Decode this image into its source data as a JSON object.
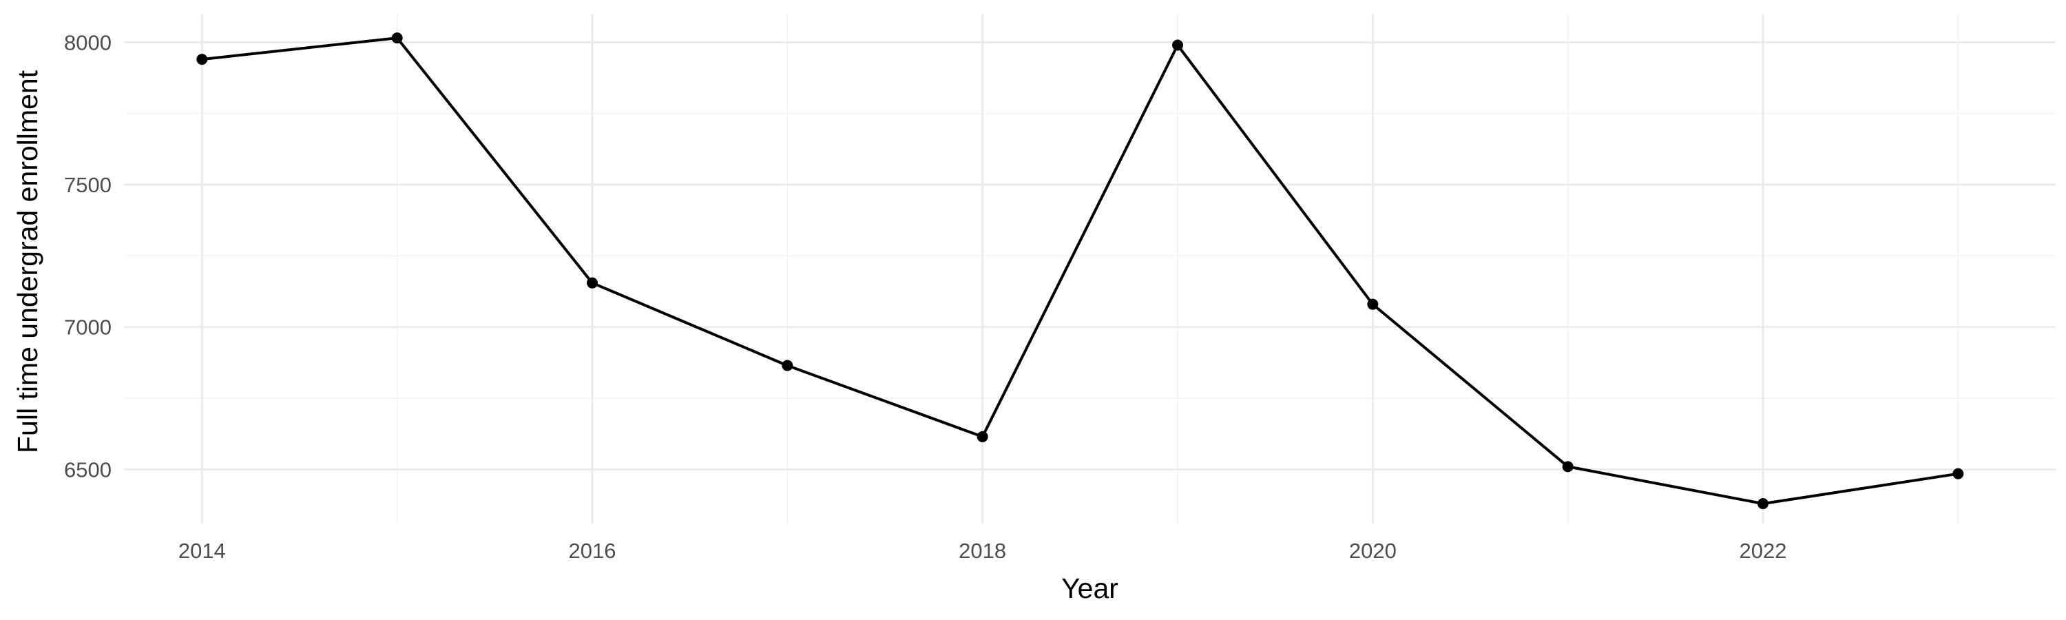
{
  "chart_data": {
    "type": "line",
    "title": "",
    "xlabel": "Year",
    "ylabel": "Full time undergrad enrollment",
    "x": [
      2014,
      2015,
      2016,
      2017,
      2018,
      2019,
      2020,
      2021,
      2022,
      2023
    ],
    "series": [
      {
        "values": [
          7940,
          8015,
          7155,
          6865,
          6615,
          7990,
          7080,
          6510,
          6380,
          6485
        ],
        "color": "#000000"
      }
    ],
    "xlim": [
      2013.6,
      2023.5
    ],
    "ylim": [
      6310,
      8100
    ],
    "x_ticks": [
      2014,
      2016,
      2018,
      2020,
      2022
    ],
    "x_tick_labels": [
      "2014",
      "2016",
      "2018",
      "2020",
      "2022"
    ],
    "y_ticks": [
      6500,
      7000,
      7500,
      8000
    ],
    "y_tick_labels": [
      "6500",
      "7000",
      "7500",
      "8000"
    ],
    "grid": true,
    "legend": "none"
  }
}
